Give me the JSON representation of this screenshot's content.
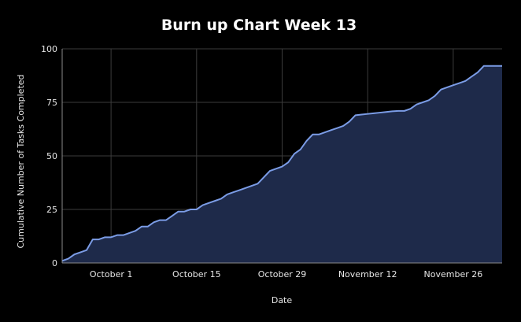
{
  "chart_data": {
    "type": "area",
    "title": "Burn up Chart Week 13",
    "xlabel": "Date",
    "ylabel": "Cumulative Number of Tasks Completed",
    "ylim": [
      0,
      100
    ],
    "xlim": [
      "2023-09-23",
      "2023-12-04"
    ],
    "grid": true,
    "legend": "none",
    "x_ticks": [
      {
        "date": "2023-10-01",
        "label": "October 1"
      },
      {
        "date": "2023-10-15",
        "label": "October 15"
      },
      {
        "date": "2023-10-29",
        "label": "October 29"
      },
      {
        "date": "2023-11-12",
        "label": "November 12"
      },
      {
        "date": "2023-11-26",
        "label": "November 26"
      }
    ],
    "y_ticks": [
      0,
      25,
      50,
      75,
      100
    ],
    "colors": {
      "line": "#7b9ce6",
      "fill": "#1e2a4a",
      "background": "#000000"
    },
    "series": [
      {
        "x": [
          "2023-09-23",
          "2023-09-24",
          "2023-09-25",
          "2023-09-26",
          "2023-09-27",
          "2023-09-28",
          "2023-09-29",
          "2023-09-30",
          "2023-10-01",
          "2023-10-02",
          "2023-10-03",
          "2023-10-04",
          "2023-10-05",
          "2023-10-06",
          "2023-10-07",
          "2023-10-08",
          "2023-10-09",
          "2023-10-10",
          "2023-10-11",
          "2023-10-12",
          "2023-10-13",
          "2023-10-14",
          "2023-10-15",
          "2023-10-16",
          "2023-10-17",
          "2023-10-18",
          "2023-10-19",
          "2023-10-20",
          "2023-10-21",
          "2023-10-22",
          "2023-10-23",
          "2023-10-24",
          "2023-10-25",
          "2023-10-26",
          "2023-10-27",
          "2023-10-28",
          "2023-10-29",
          "2023-10-30",
          "2023-10-31",
          "2023-11-01",
          "2023-11-02",
          "2023-11-03",
          "2023-11-04",
          "2023-11-05",
          "2023-11-06",
          "2023-11-07",
          "2023-11-08",
          "2023-11-09",
          "2023-11-10",
          "2023-11-11",
          "2023-11-12",
          "2023-11-13",
          "2023-11-14",
          "2023-11-15",
          "2023-11-16",
          "2023-11-17",
          "2023-11-18",
          "2023-11-19",
          "2023-11-20",
          "2023-11-21",
          "2023-11-22",
          "2023-11-23",
          "2023-11-24",
          "2023-11-25",
          "2023-11-26",
          "2023-11-27",
          "2023-11-28",
          "2023-11-29",
          "2023-11-30",
          "2023-12-01",
          "2023-12-02",
          "2023-12-03",
          "2023-12-04"
        ],
        "values": [
          1,
          2,
          4,
          5,
          6,
          11,
          11,
          12,
          12,
          13,
          13,
          14,
          15,
          17,
          17,
          19,
          20,
          20,
          22,
          24,
          24,
          25,
          25,
          27,
          28,
          29,
          30,
          32,
          33,
          34,
          35,
          36,
          37,
          40,
          43,
          44,
          45,
          47,
          51,
          53,
          57,
          60,
          60,
          61,
          62,
          63,
          64,
          66,
          69,
          69.3,
          69.6,
          69.9,
          70.2,
          70.5,
          70.8,
          71,
          71,
          72,
          74,
          75,
          76,
          78,
          81,
          82,
          83,
          84,
          85,
          87,
          89,
          92,
          92,
          92,
          92
        ]
      }
    ]
  }
}
